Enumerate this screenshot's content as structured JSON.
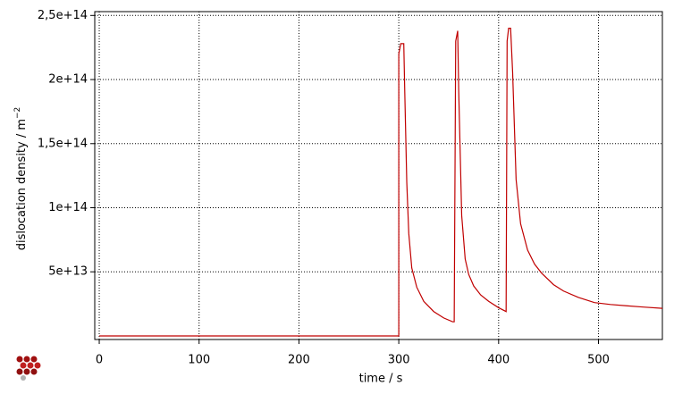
{
  "chart_data": {
    "type": "line",
    "xlabel": "time / s",
    "ylabel": "dislocation density / m",
    "ylabel_superscript": "−2",
    "color": "#c00000",
    "grid": true,
    "xlim": [
      -4.5,
      564
    ],
    "xticks": [
      0,
      100,
      200,
      300,
      400,
      500
    ],
    "ylim": [
      -2800000000000.0,
      253000000000000.0
    ],
    "yticks": [
      {
        "value": 50000000000000.0,
        "label": "5e+13"
      },
      {
        "value": 100000000000000.0,
        "label": "1e+14"
      },
      {
        "value": 150000000000000.0,
        "label": "1,5e+14"
      },
      {
        "value": 200000000000000.0,
        "label": "2e+14"
      },
      {
        "value": 250000000000000.0,
        "label": "2,5e+14"
      }
    ],
    "x": [
      0,
      300,
      300,
      302,
      305,
      306,
      308,
      310,
      313,
      318,
      325,
      335,
      345,
      354,
      355.5,
      357,
      359,
      360,
      363,
      366.5,
      370,
      375,
      382,
      390,
      400,
      407.5,
      408.5,
      410,
      412,
      414,
      417.5,
      422,
      429,
      436,
      443,
      455,
      465,
      480,
      496,
      512,
      528,
      545,
      564
    ],
    "values": [
      0,
      0,
      220000000000000.0,
      228000000000000.0,
      228000000000000.0,
      190000000000000.0,
      120000000000000.0,
      80000000000000.0,
      53000000000000.0,
      38000000000000.0,
      27000000000000.0,
      19000000000000.0,
      14000000000000.0,
      11000000000000.0,
      11000000000000.0,
      230000000000000.0,
      238000000000000.0,
      192000000000000.0,
      94000000000000.0,
      60000000000000.0,
      48000000000000.0,
      39000000000000.0,
      32000000000000.0,
      27000000000000.0,
      22000000000000.0,
      19000000000000.0,
      230000000000000.0,
      240000000000000.0,
      240000000000000.0,
      206000000000000.0,
      122000000000000.0,
      87500000000000.0,
      67000000000000.0,
      56000000000000.0,
      49000000000000.0,
      40000000000000.0,
      35000000000000.0,
      30000000000000.0,
      26000000000000.0,
      24500000000000.0,
      23500000000000.0,
      22500000000000.0,
      21500000000000.0
    ]
  }
}
